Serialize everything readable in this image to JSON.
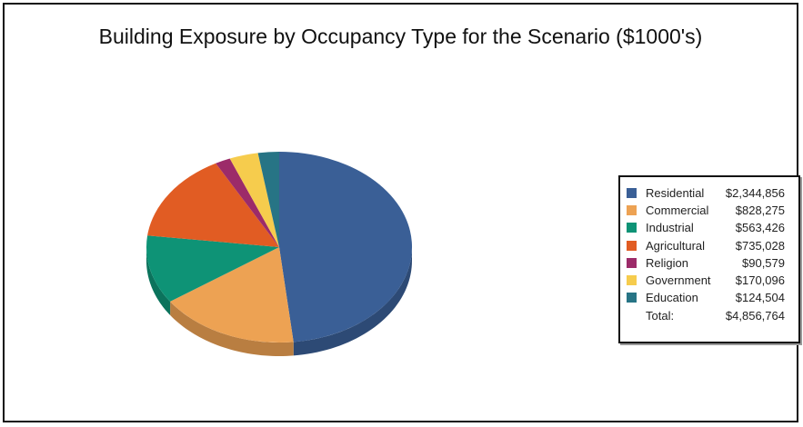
{
  "chart_data": {
    "type": "pie",
    "title": "Building Exposure by Occupancy Type for the Scenario ($1000's)",
    "categories": [
      "Residential",
      "Commercial",
      "Industrial",
      "Agricultural",
      "Religion",
      "Government",
      "Education"
    ],
    "values": [
      2344856,
      828275,
      563426,
      735028,
      90579,
      170096,
      124504
    ],
    "value_labels": [
      "$2,344,856",
      "$828,275",
      "$563,426",
      "$735,028",
      "$90,579",
      "$170,096",
      "$124,504"
    ],
    "colors": [
      "#3A5F96",
      "#EDA253",
      "#0E9376",
      "#E15C23",
      "#9C2B69",
      "#F6CC4D",
      "#277485"
    ],
    "total_label": "Total:",
    "total_value": "$4,856,764",
    "legend_position": "right",
    "style": "3d"
  }
}
